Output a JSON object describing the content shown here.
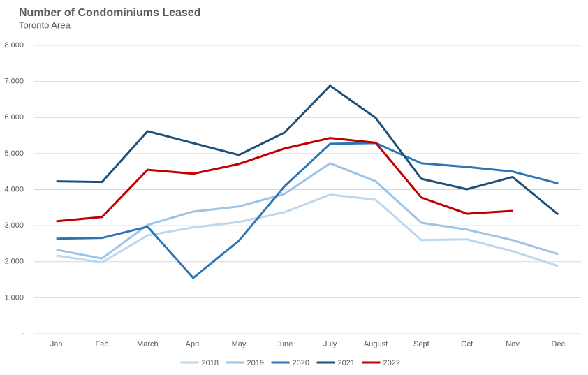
{
  "chart_data": {
    "type": "line",
    "title": "Number of Condominiums Leased",
    "subtitle": "Toronto Area",
    "categories": [
      "Jan",
      "Feb",
      "March",
      "April",
      "May",
      "June",
      "July",
      "August",
      "Sept",
      "Oct",
      "Nov",
      "Dec"
    ],
    "series": [
      {
        "name": "2018",
        "color": "#bdd7ee",
        "values": [
          2170,
          1980,
          2730,
          2950,
          3100,
          3370,
          3860,
          3720,
          2600,
          2620,
          2290,
          1880
        ]
      },
      {
        "name": "2019",
        "color": "#9dc3e6",
        "values": [
          2330,
          2090,
          3020,
          3390,
          3530,
          3880,
          4730,
          4230,
          3080,
          2890,
          2600,
          2210
        ]
      },
      {
        "name": "2020",
        "color": "#2e75b6",
        "values": [
          2640,
          2660,
          2970,
          1550,
          2580,
          4090,
          5270,
          5290,
          4730,
          4630,
          4500,
          4170
        ]
      },
      {
        "name": "2021",
        "color": "#1f4e79",
        "values": [
          4230,
          4210,
          5620,
          5290,
          4960,
          5580,
          6880,
          5990,
          4300,
          4010,
          4350,
          3310
        ]
      },
      {
        "name": "2022",
        "color": "#c00000",
        "values": [
          3120,
          3240,
          4550,
          4440,
          4710,
          5140,
          5430,
          5300,
          3780,
          3330,
          3410,
          null
        ]
      }
    ],
    "ylim": [
      0,
      8000
    ],
    "yticks": [
      {
        "value": 0,
        "label": "-"
      },
      {
        "value": 1000,
        "label": "1,000"
      },
      {
        "value": 2000,
        "label": "2,000"
      },
      {
        "value": 3000,
        "label": "3,000"
      },
      {
        "value": 4000,
        "label": "4,000"
      },
      {
        "value": 5000,
        "label": "5,000"
      },
      {
        "value": 6000,
        "label": "6,000"
      },
      {
        "value": 7000,
        "label": "7,000"
      },
      {
        "value": 8000,
        "label": "8,000"
      }
    ],
    "grid": true,
    "legend": "bottom"
  }
}
